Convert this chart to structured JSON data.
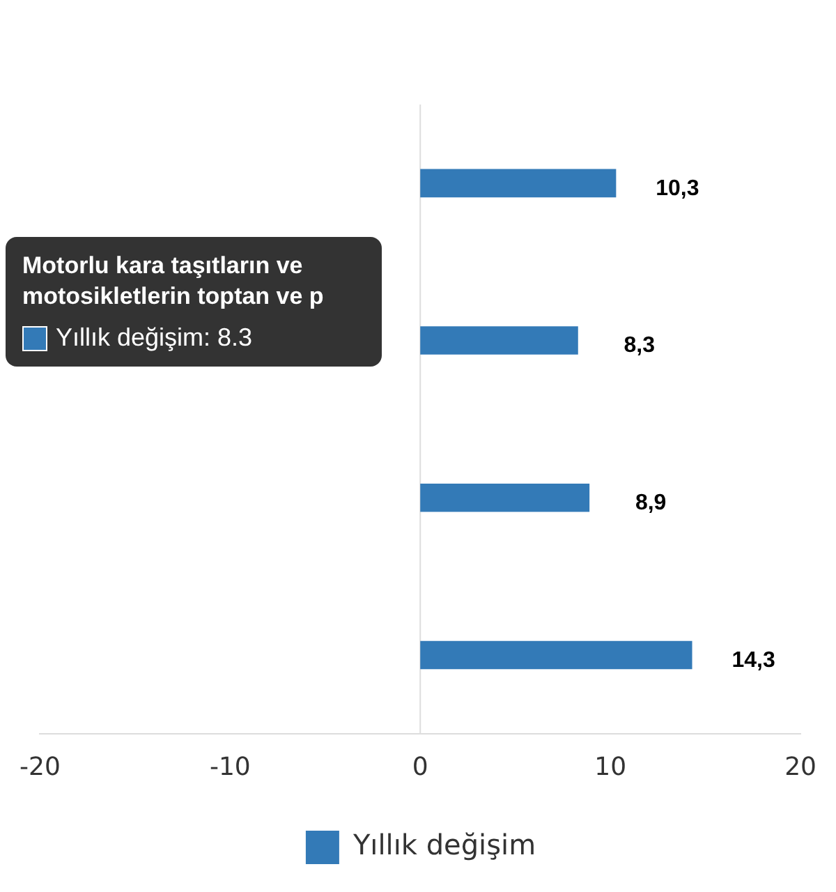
{
  "chart_data": {
    "type": "bar",
    "orientation": "horizontal",
    "categories": [
      null,
      null,
      null,
      null
    ],
    "series": [
      {
        "name": "Yıllık değişim",
        "color": "#337ab7",
        "values": [
          10.3,
          8.3,
          8.9,
          14.3
        ],
        "value_labels": [
          "10,3",
          "8,3",
          "8,9",
          "14,3"
        ]
      }
    ],
    "xlim": [
      -20,
      20
    ],
    "xticks": [
      -20,
      -10,
      0,
      10,
      20
    ],
    "grid": false,
    "legend": "bottom",
    "ref_lines": [
      {
        "axis": "x",
        "value": 0,
        "color": "#dddddd"
      }
    ],
    "annotations": [
      "Motorlu kara taşıtların ve motosikletlerin toptan ve p",
      "Yıllık değişim: 8.3"
    ]
  }
}
